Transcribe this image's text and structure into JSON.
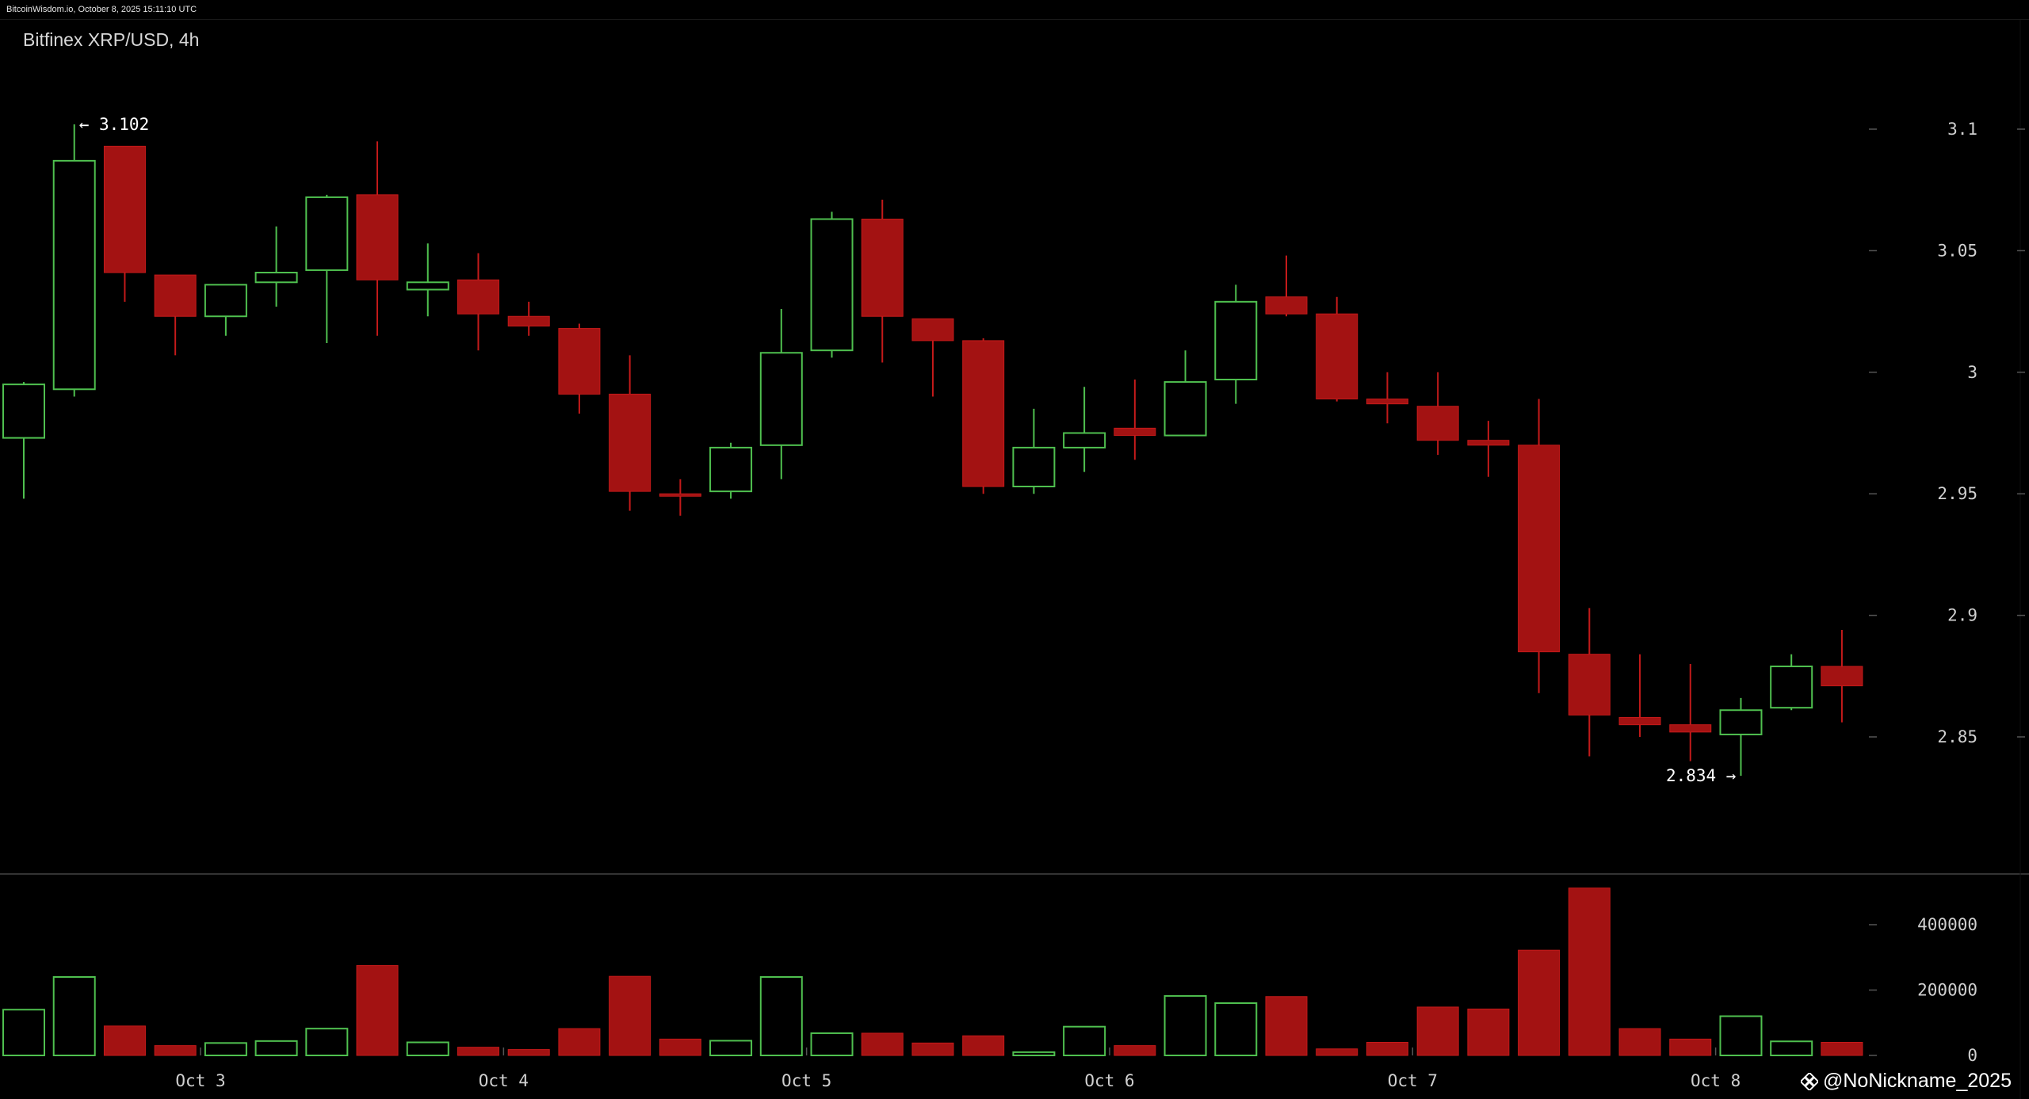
{
  "header": {
    "source_text": "BitcoinWisdom.io, October 8, 2025 15:11:10 UTC"
  },
  "chart_title": "Bitfinex XRP/USD, 4h",
  "watermark": "@NoNickname_2025",
  "colors": {
    "up": "#4fc04f",
    "down": "#a31212",
    "down_edge": "#c41a1a",
    "background": "#000000",
    "grid_tick": "#555555"
  },
  "chart_data": [
    {
      "type": "candlestick",
      "title": "Bitfinex XRP/USD, 4h",
      "x_tick_labels": [
        "Oct 3",
        "Oct 4",
        "Oct 5",
        "Oct 6",
        "Oct 7",
        "Oct 8"
      ],
      "x_tick_positions": [
        3.5,
        9.5,
        15.5,
        21.5,
        27.5,
        33.5
      ],
      "y_ticks": [
        "3.1",
        "3.05",
        "3",
        "2.95",
        "2.9",
        "2.85"
      ],
      "y_tick_values": [
        3.1,
        3.05,
        3.0,
        2.95,
        2.9,
        2.85
      ],
      "ylim": [
        2.79,
        3.13
      ],
      "annotations": [
        {
          "text": "← 3.102",
          "index": 1,
          "value": 3.102,
          "side": "right"
        },
        {
          "text": "2.834 →",
          "index": 34,
          "value": 2.834,
          "side": "left"
        }
      ],
      "candles": [
        {
          "o": 2.973,
          "h": 2.996,
          "l": 2.948,
          "c": 2.995
        },
        {
          "o": 2.993,
          "h": 3.102,
          "l": 2.99,
          "c": 3.087
        },
        {
          "o": 3.093,
          "h": 3.093,
          "l": 3.029,
          "c": 3.041
        },
        {
          "o": 3.04,
          "h": 3.04,
          "l": 3.007,
          "c": 3.023
        },
        {
          "o": 3.023,
          "h": 3.036,
          "l": 3.015,
          "c": 3.036
        },
        {
          "o": 3.037,
          "h": 3.06,
          "l": 3.027,
          "c": 3.041
        },
        {
          "o": 3.042,
          "h": 3.073,
          "l": 3.012,
          "c": 3.072
        },
        {
          "o": 3.073,
          "h": 3.095,
          "l": 3.015,
          "c": 3.038
        },
        {
          "o": 3.034,
          "h": 3.053,
          "l": 3.023,
          "c": 3.037
        },
        {
          "o": 3.038,
          "h": 3.049,
          "l": 3.009,
          "c": 3.024
        },
        {
          "o": 3.023,
          "h": 3.029,
          "l": 3.015,
          "c": 3.019
        },
        {
          "o": 3.018,
          "h": 3.02,
          "l": 2.983,
          "c": 2.991
        },
        {
          "o": 2.991,
          "h": 3.007,
          "l": 2.943,
          "c": 2.951
        },
        {
          "o": 2.95,
          "h": 2.956,
          "l": 2.941,
          "c": 2.949
        },
        {
          "o": 2.951,
          "h": 2.971,
          "l": 2.948,
          "c": 2.969
        },
        {
          "o": 2.97,
          "h": 3.026,
          "l": 2.956,
          "c": 3.008
        },
        {
          "o": 3.009,
          "h": 3.066,
          "l": 3.006,
          "c": 3.063
        },
        {
          "o": 3.063,
          "h": 3.071,
          "l": 3.004,
          "c": 3.023
        },
        {
          "o": 3.022,
          "h": 3.022,
          "l": 2.99,
          "c": 3.013
        },
        {
          "o": 3.013,
          "h": 3.014,
          "l": 2.95,
          "c": 2.953
        },
        {
          "o": 2.953,
          "h": 2.985,
          "l": 2.95,
          "c": 2.969
        },
        {
          "o": 2.969,
          "h": 2.994,
          "l": 2.959,
          "c": 2.975
        },
        {
          "o": 2.977,
          "h": 2.997,
          "l": 2.964,
          "c": 2.974
        },
        {
          "o": 2.974,
          "h": 3.009,
          "l": 2.974,
          "c": 2.996
        },
        {
          "o": 2.997,
          "h": 3.036,
          "l": 2.987,
          "c": 3.029
        },
        {
          "o": 3.031,
          "h": 3.048,
          "l": 3.023,
          "c": 3.024
        },
        {
          "o": 3.024,
          "h": 3.031,
          "l": 2.988,
          "c": 2.989
        },
        {
          "o": 2.989,
          "h": 3.0,
          "l": 2.979,
          "c": 2.987
        },
        {
          "o": 2.986,
          "h": 3.0,
          "l": 2.966,
          "c": 2.972
        },
        {
          "o": 2.972,
          "h": 2.98,
          "l": 2.957,
          "c": 2.97
        },
        {
          "o": 2.97,
          "h": 2.989,
          "l": 2.868,
          "c": 2.885
        },
        {
          "o": 2.884,
          "h": 2.903,
          "l": 2.842,
          "c": 2.859
        },
        {
          "o": 2.858,
          "h": 2.884,
          "l": 2.85,
          "c": 2.855
        },
        {
          "o": 2.855,
          "h": 2.88,
          "l": 2.84,
          "c": 2.852
        },
        {
          "o": 2.851,
          "h": 2.866,
          "l": 2.834,
          "c": 2.861
        },
        {
          "o": 2.862,
          "h": 2.884,
          "l": 2.861,
          "c": 2.879
        },
        {
          "o": 2.879,
          "h": 2.894,
          "l": 2.856,
          "c": 2.871
        }
      ]
    },
    {
      "type": "bar",
      "title": "",
      "y_ticks": [
        "400000",
        "200000",
        "0"
      ],
      "y_tick_values": [
        400000,
        200000,
        0
      ],
      "ylim": [
        0,
        520000
      ],
      "volume": [
        140000,
        240000,
        90000,
        30000,
        38000,
        44000,
        82000,
        275000,
        40000,
        25000,
        18000,
        82000,
        242000,
        50000,
        45000,
        240000,
        68000,
        68000,
        38000,
        60000,
        10000,
        88000,
        30000,
        182000,
        160000,
        180000,
        20000,
        40000,
        148000,
        142000,
        322000,
        512000,
        82000,
        50000,
        120000,
        43000,
        40000
      ]
    }
  ]
}
